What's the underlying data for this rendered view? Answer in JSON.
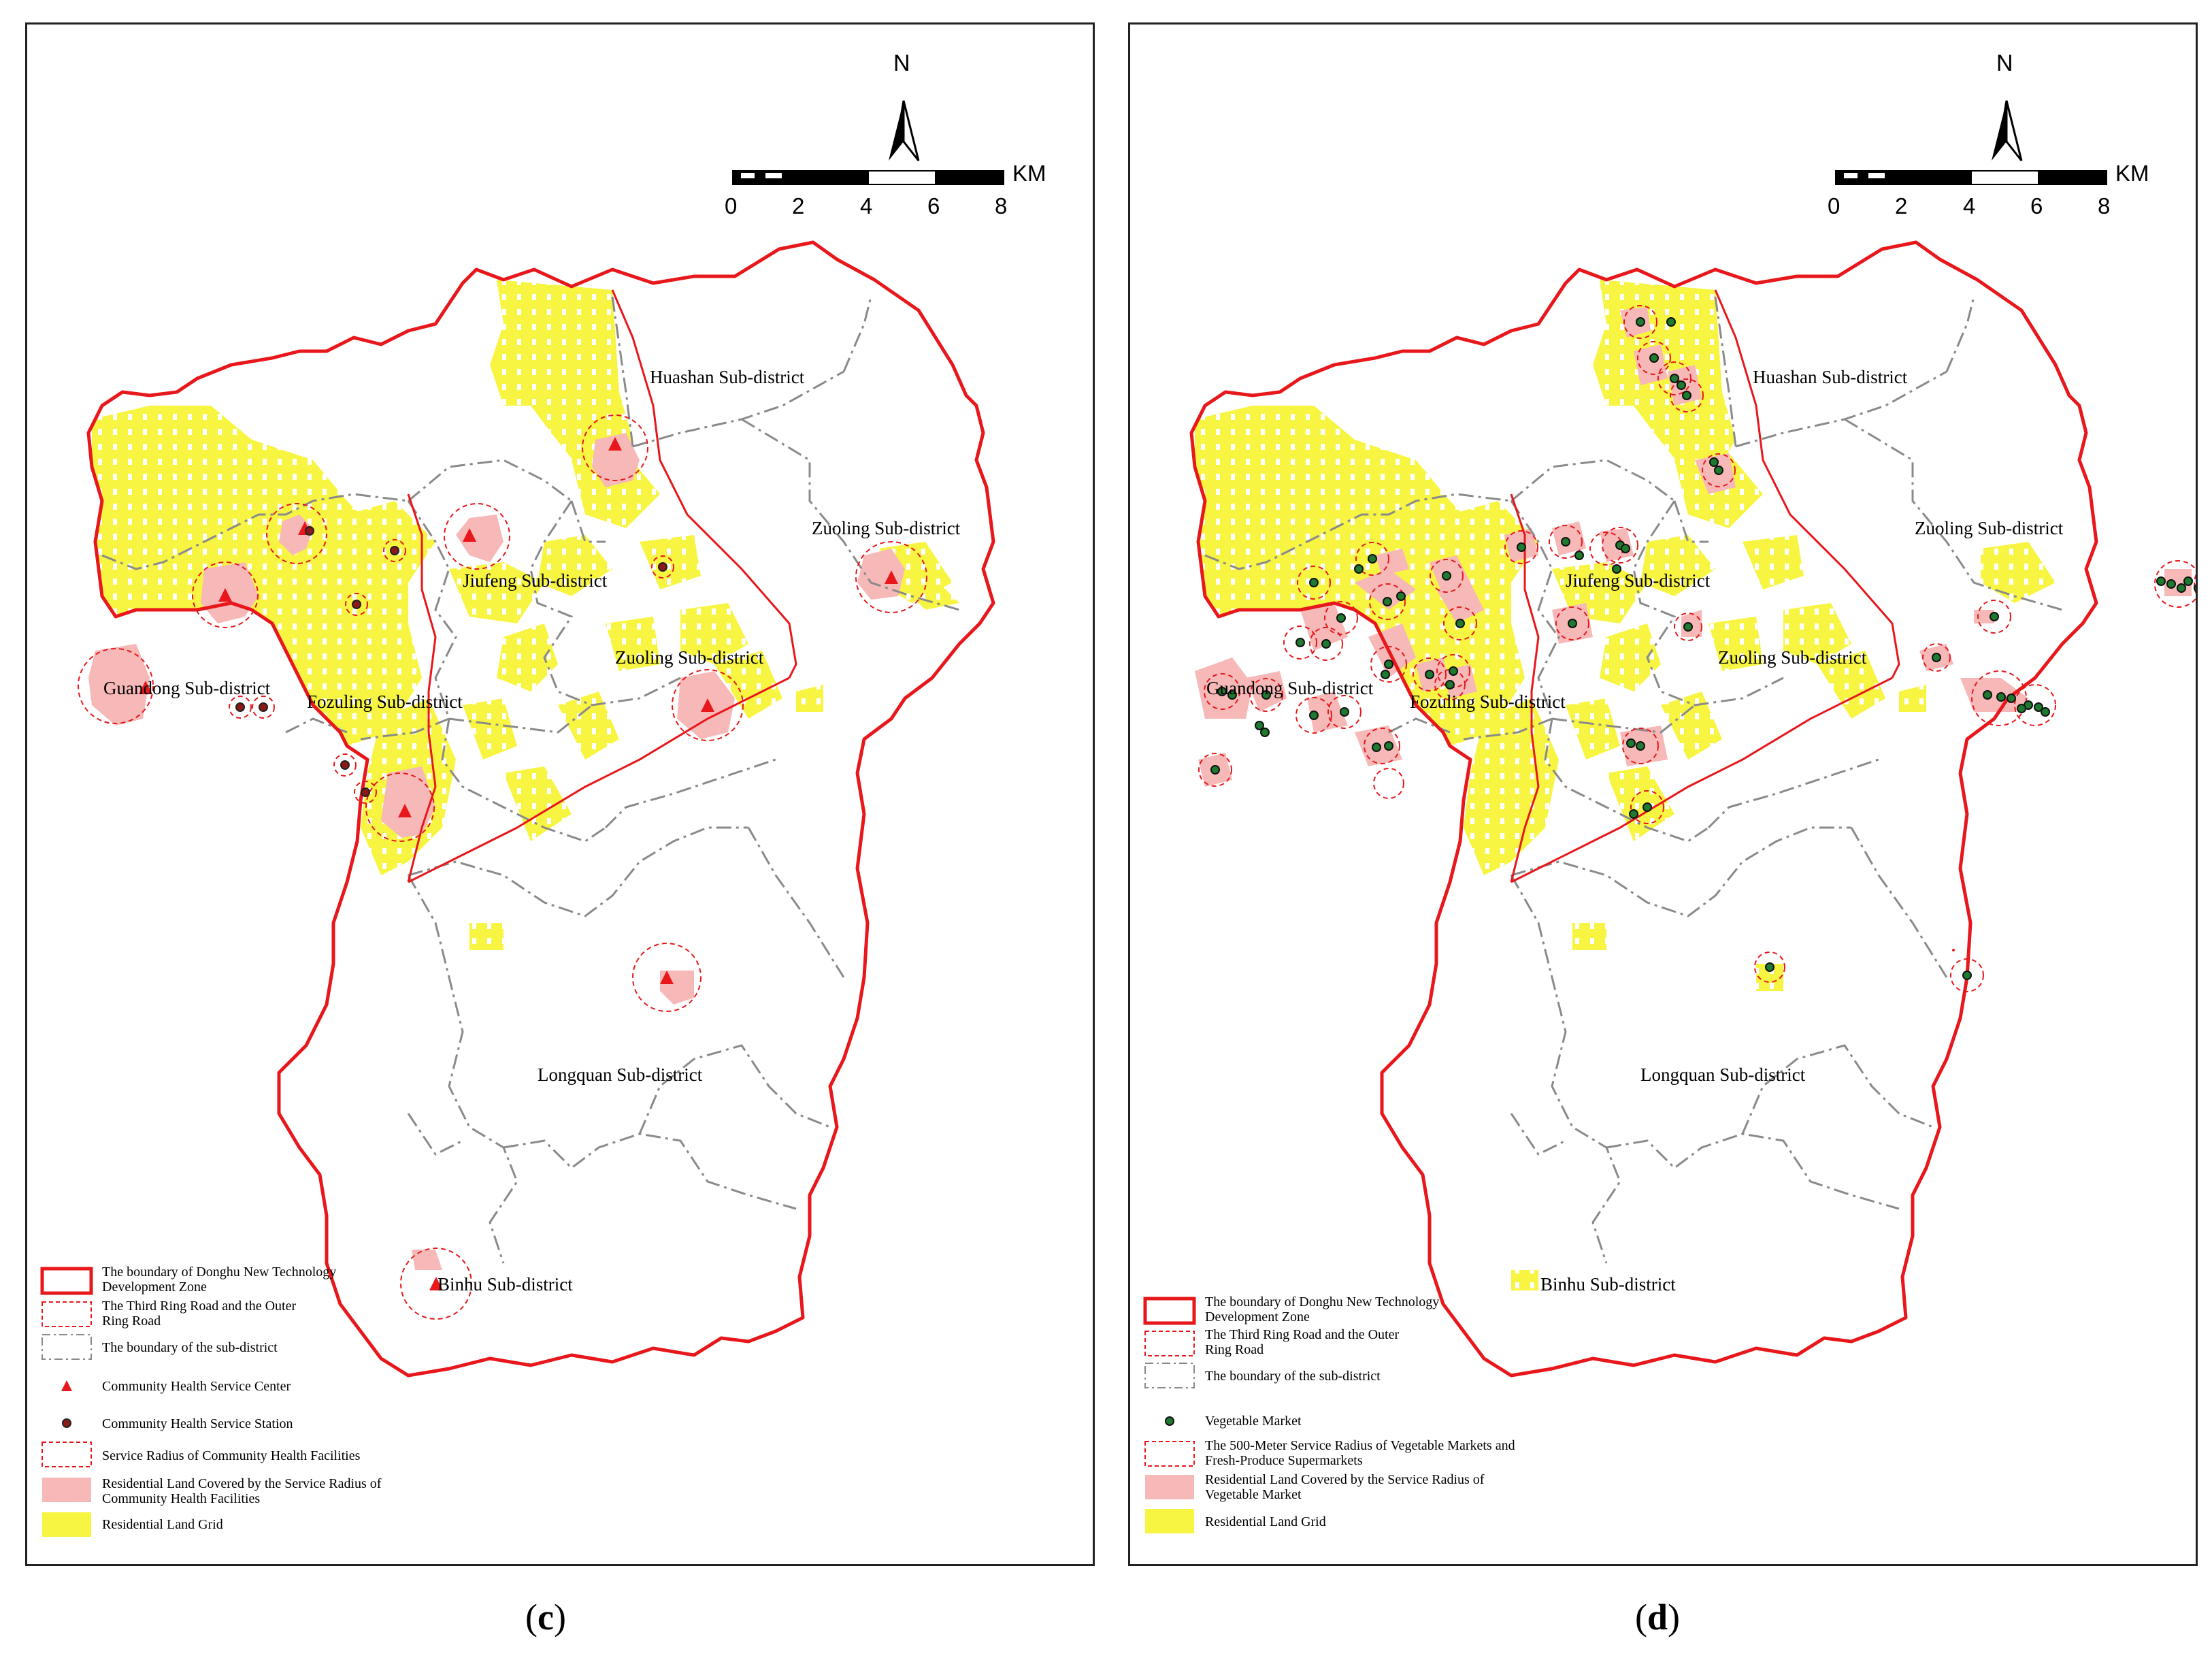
{
  "panel_c": {
    "north": "N",
    "scale": {
      "unit": "KM",
      "ticks": [
        "0",
        "2",
        "4",
        "6",
        "8"
      ]
    },
    "labels": {
      "huashan": "Huashan Sub-district",
      "zuoling_e": "Zuoling Sub-district",
      "jiufeng": "Jiufeng Sub-district",
      "zuoling_c": "Zuoling Sub-district",
      "guandong": "Guandong Sub-district",
      "fozuling": "Fozuling Sub-district",
      "longquan": "Longquan Sub-district",
      "binhu": "Binhu Sub-district"
    },
    "legend": {
      "boundary": "The boundary of Donghu New Technology Development Zone",
      "ring": "The Third Ring Road and the Outer Ring Road",
      "subdistrict": "The boundary of the sub-district",
      "center": "Community Health Service Center",
      "station": "Community Health Service Station",
      "radius": "Service Radius of Community Health Facilities",
      "covered": "Residential Land Covered by the Service Radius of Community Health Facilities",
      "grid": "Residential Land Grid"
    },
    "caption_letter": "c"
  },
  "panel_d": {
    "north": "N",
    "scale": {
      "unit": "KM",
      "ticks": [
        "0",
        "2",
        "4",
        "6",
        "8"
      ]
    },
    "labels": {
      "huashan": "Huashan Sub-district",
      "zuoling_e": "Zuoling Sub-district",
      "jiufeng": "Jiufeng Sub-district",
      "zuoling_c": "Zuoling Sub-district",
      "guandong": "Guandong Sub-district",
      "fozuling": "Fozuling Sub-district",
      "longquan": "Longquan Sub-district",
      "binhu": "Binhu Sub-district"
    },
    "legend": {
      "boundary": "The boundary of Donghu New Technology Development Zone",
      "ring": "The Third Ring Road and the Outer Ring Road",
      "subdistrict": "The boundary of the sub-district",
      "market": "Vegetable Market",
      "radius": "The 500-Meter Service Radius of Vegetable Markets and Fresh-Produce Supermarkets",
      "covered": "Residential Land Covered by the Service Radius of Vegetable Market",
      "grid": "Residential Land Grid"
    },
    "caption_letter": "d"
  },
  "colors": {
    "boundary": "#e8171b",
    "subdistrict": "#8a8a8a",
    "residential": "#f7f542",
    "covered": "#f7b8b8",
    "health_center": "#e8171b",
    "health_station": "#8b1a1a",
    "vegetable_market": "#1e7a2e"
  }
}
